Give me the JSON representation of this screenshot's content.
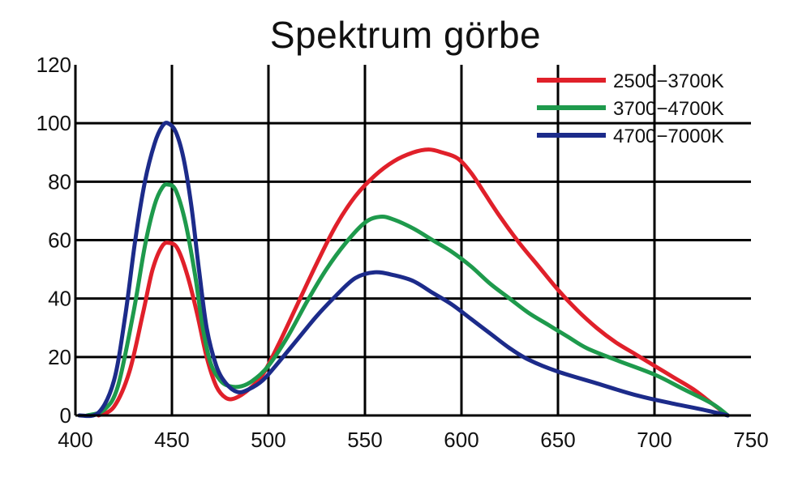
{
  "chart_data": {
    "type": "line",
    "title": "Spektrum görbe",
    "xlabel": "",
    "ylabel": "",
    "xlim": [
      400,
      750
    ],
    "ylim": [
      0,
      120
    ],
    "x_ticks": [
      400,
      450,
      500,
      550,
      600,
      650,
      700,
      750
    ],
    "y_ticks": [
      0,
      20,
      40,
      60,
      80,
      100,
      120
    ],
    "grid": true,
    "legend_position": "top-right",
    "series": [
      {
        "name": "2500−3700K",
        "color": "#e0202a",
        "points": [
          [
            412,
            0
          ],
          [
            420,
            3
          ],
          [
            428,
            15
          ],
          [
            435,
            35
          ],
          [
            440,
            50
          ],
          [
            445,
            58
          ],
          [
            449,
            59
          ],
          [
            453,
            57
          ],
          [
            458,
            48
          ],
          [
            463,
            35
          ],
          [
            468,
            20
          ],
          [
            473,
            10
          ],
          [
            478,
            6
          ],
          [
            483,
            6
          ],
          [
            490,
            9
          ],
          [
            497,
            14
          ],
          [
            505,
            24
          ],
          [
            515,
            38
          ],
          [
            525,
            52
          ],
          [
            535,
            65
          ],
          [
            545,
            75
          ],
          [
            555,
            82
          ],
          [
            565,
            87
          ],
          [
            575,
            90
          ],
          [
            583,
            91
          ],
          [
            590,
            90
          ],
          [
            598,
            88
          ],
          [
            605,
            83
          ],
          [
            612,
            76
          ],
          [
            620,
            68
          ],
          [
            630,
            59
          ],
          [
            640,
            51
          ],
          [
            650,
            43
          ],
          [
            660,
            36
          ],
          [
            670,
            30
          ],
          [
            680,
            25
          ],
          [
            690,
            21
          ],
          [
            700,
            17
          ],
          [
            710,
            13
          ],
          [
            720,
            9
          ],
          [
            730,
            4
          ],
          [
            738,
            0
          ]
        ]
      },
      {
        "name": "3700−4700K",
        "color": "#1e9a4c",
        "points": [
          [
            406,
            0
          ],
          [
            415,
            2
          ],
          [
            422,
            10
          ],
          [
            430,
            35
          ],
          [
            436,
            58
          ],
          [
            441,
            72
          ],
          [
            445,
            78
          ],
          [
            448,
            79
          ],
          [
            452,
            77
          ],
          [
            457,
            66
          ],
          [
            462,
            48
          ],
          [
            466,
            30
          ],
          [
            470,
            18
          ],
          [
            475,
            12
          ],
          [
            480,
            10
          ],
          [
            486,
            10
          ],
          [
            492,
            12
          ],
          [
            500,
            17
          ],
          [
            510,
            27
          ],
          [
            520,
            39
          ],
          [
            530,
            50
          ],
          [
            540,
            59
          ],
          [
            550,
            66
          ],
          [
            558,
            68
          ],
          [
            565,
            67
          ],
          [
            575,
            64
          ],
          [
            585,
            60
          ],
          [
            595,
            56
          ],
          [
            605,
            51
          ],
          [
            615,
            45
          ],
          [
            625,
            40
          ],
          [
            635,
            35
          ],
          [
            645,
            31
          ],
          [
            655,
            27
          ],
          [
            665,
            23
          ],
          [
            680,
            19
          ],
          [
            700,
            14
          ],
          [
            715,
            9
          ],
          [
            730,
            4
          ],
          [
            738,
            0
          ]
        ]
      },
      {
        "name": "4700−7000K",
        "color": "#1c2b8a",
        "points": [
          [
            402,
            0
          ],
          [
            412,
            1
          ],
          [
            420,
            12
          ],
          [
            426,
            35
          ],
          [
            431,
            60
          ],
          [
            436,
            80
          ],
          [
            441,
            93
          ],
          [
            445,
            99
          ],
          [
            448,
            100
          ],
          [
            452,
            97
          ],
          [
            456,
            88
          ],
          [
            460,
            72
          ],
          [
            464,
            50
          ],
          [
            468,
            30
          ],
          [
            473,
            17
          ],
          [
            478,
            11
          ],
          [
            484,
            8
          ],
          [
            490,
            9
          ],
          [
            497,
            12
          ],
          [
            505,
            18
          ],
          [
            515,
            26
          ],
          [
            525,
            34
          ],
          [
            535,
            41
          ],
          [
            545,
            47
          ],
          [
            555,
            49
          ],
          [
            565,
            48
          ],
          [
            575,
            46
          ],
          [
            585,
            42
          ],
          [
            595,
            38
          ],
          [
            605,
            33
          ],
          [
            615,
            28
          ],
          [
            625,
            23
          ],
          [
            635,
            19
          ],
          [
            650,
            15
          ],
          [
            670,
            11
          ],
          [
            690,
            7
          ],
          [
            710,
            4
          ],
          [
            725,
            2
          ],
          [
            738,
            0
          ]
        ]
      }
    ]
  }
}
